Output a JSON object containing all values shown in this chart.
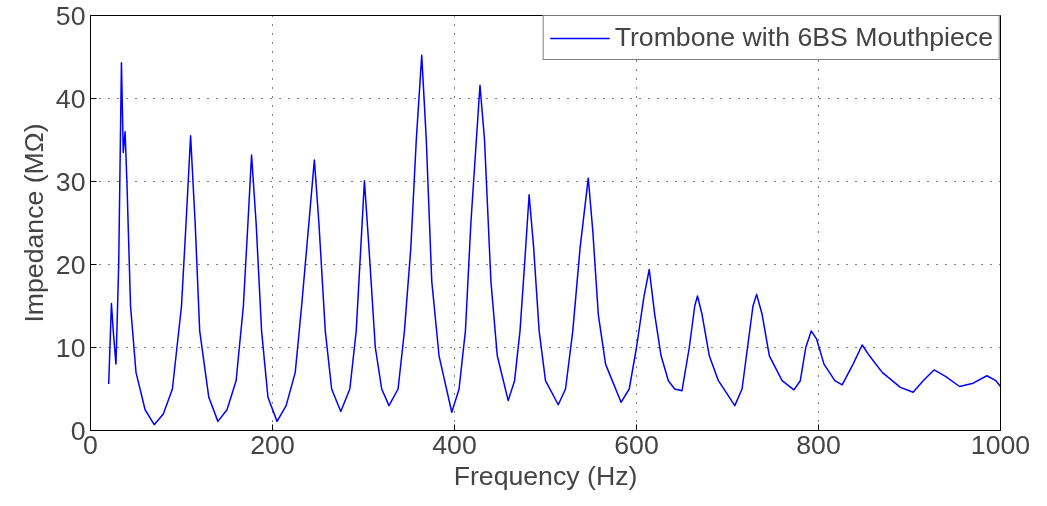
{
  "chart_data": {
    "type": "line",
    "xlabel": "Frequency (Hz)",
    "ylabel": "Impedance (MΩ)",
    "xlim": [
      0,
      1000
    ],
    "ylim": [
      0,
      50
    ],
    "xticks": [
      0,
      200,
      400,
      600,
      800,
      1000
    ],
    "yticks": [
      0,
      10,
      20,
      30,
      40,
      50
    ],
    "grid": true,
    "legend": "top right",
    "line_style": "solid",
    "series": [
      {
        "name": "Trombone with 6BS Mouthpiece",
        "color": "#0000ff",
        "x": [
          20,
          23,
          25,
          28,
          31,
          34,
          36,
          38,
          40,
          44,
          50,
          60,
          70,
          80,
          90,
          100,
          105,
          110,
          115,
          120,
          130,
          140,
          150,
          160,
          168,
          173,
          177,
          182,
          188,
          195,
          205,
          215,
          225,
          232,
          240,
          246,
          251,
          258,
          265,
          275,
          285,
          292,
          297,
          301,
          306,
          313,
          320,
          328,
          338,
          345,
          352,
          358,
          364,
          369,
          375,
          383,
          397,
          405,
          412,
          418,
          424,
          428,
          433,
          440,
          447,
          459,
          466,
          472,
          477,
          482,
          487,
          493,
          500,
          514,
          522,
          530,
          538,
          547,
          552,
          558,
          566,
          583,
          592,
          600,
          608,
          614,
          620,
          627,
          635,
          642,
          650,
          658,
          664,
          667,
          672,
          680,
          690,
          708,
          716,
          722,
          728,
          732,
          738,
          746,
          760,
          773,
          780,
          786,
          792,
          798,
          806,
          818,
          826,
          838,
          848,
          856,
          870,
          890,
          904,
          915,
          927,
          940,
          955,
          970,
          985,
          995,
          1000
        ],
        "values": [
          5.6,
          15.3,
          12,
          8,
          20,
          44.3,
          33.5,
          36,
          30,
          15,
          7,
          2.5,
          0.7,
          2,
          5,
          15,
          25,
          35.5,
          25,
          12,
          4,
          1.1,
          2.5,
          6,
          15,
          25,
          33.2,
          25,
          12,
          4,
          1.1,
          3,
          7,
          15,
          25,
          32.6,
          25,
          12,
          5,
          2.3,
          5,
          12,
          22,
          30.1,
          22,
          10,
          5,
          3,
          5,
          12,
          22,
          35,
          45.2,
          35,
          18,
          9,
          2.2,
          5,
          12,
          25,
          35,
          41.6,
          35,
          18,
          9,
          3.6,
          6,
          12,
          20,
          28.4,
          22,
          12,
          6,
          3.1,
          5,
          12,
          22,
          30.4,
          24,
          14,
          8,
          3.4,
          5,
          10,
          16,
          19.4,
          14,
          9,
          6,
          5,
          4.8,
          10,
          15,
          16.2,
          14,
          9,
          6,
          3,
          5,
          10,
          15,
          16.4,
          14,
          9,
          6,
          4.9,
          6,
          10,
          12,
          11,
          8,
          6,
          5.5,
          8,
          10.3,
          9,
          7,
          5.2,
          4.6,
          6,
          7.3,
          6.5,
          5.3,
          5.7,
          6.6,
          6,
          5.3
        ]
      }
    ]
  }
}
